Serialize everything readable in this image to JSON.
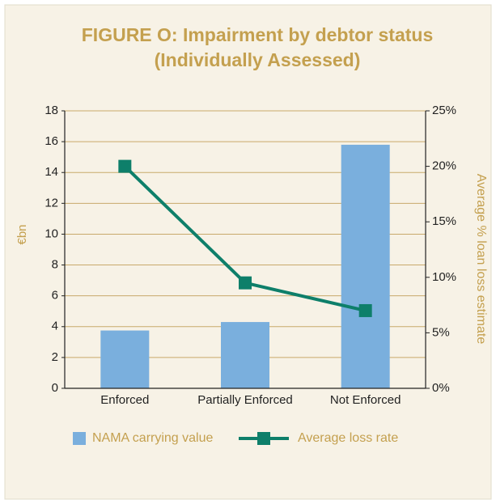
{
  "chart_data": {
    "type": "bar_line",
    "title": [
      "FIGURE O: Impairment by debtor status",
      "(Individually Assessed)"
    ],
    "ylabel": "€bn",
    "y2label": "Average % loan loss estimate",
    "categories": [
      "Enforced",
      "Partially Enforced",
      "Not Enforced"
    ],
    "series": [
      {
        "name": "NAMA carrying value",
        "color": "#7aafdd",
        "type": "bar",
        "values": [
          3.75,
          4.3,
          15.8
        ]
      },
      {
        "name": "Average loss rate",
        "color": "#0e7f6a",
        "type": "line",
        "axis": "y2",
        "values": [
          20,
          9.5,
          7
        ]
      }
    ],
    "ylim": [
      0,
      18
    ],
    "yticks": [
      0,
      2,
      4,
      6,
      8,
      10,
      12,
      14,
      16,
      18
    ],
    "y2lim": [
      0,
      25
    ],
    "y2ticks": [
      {
        "value": 0,
        "label": "0%"
      },
      {
        "value": 5,
        "label": "5%"
      },
      {
        "value": 10,
        "label": "10%"
      },
      {
        "value": 15,
        "label": "15%"
      },
      {
        "value": 20,
        "label": "20%"
      },
      {
        "value": 25,
        "label": "25%"
      }
    ],
    "grid": true,
    "legend": "bottom"
  }
}
